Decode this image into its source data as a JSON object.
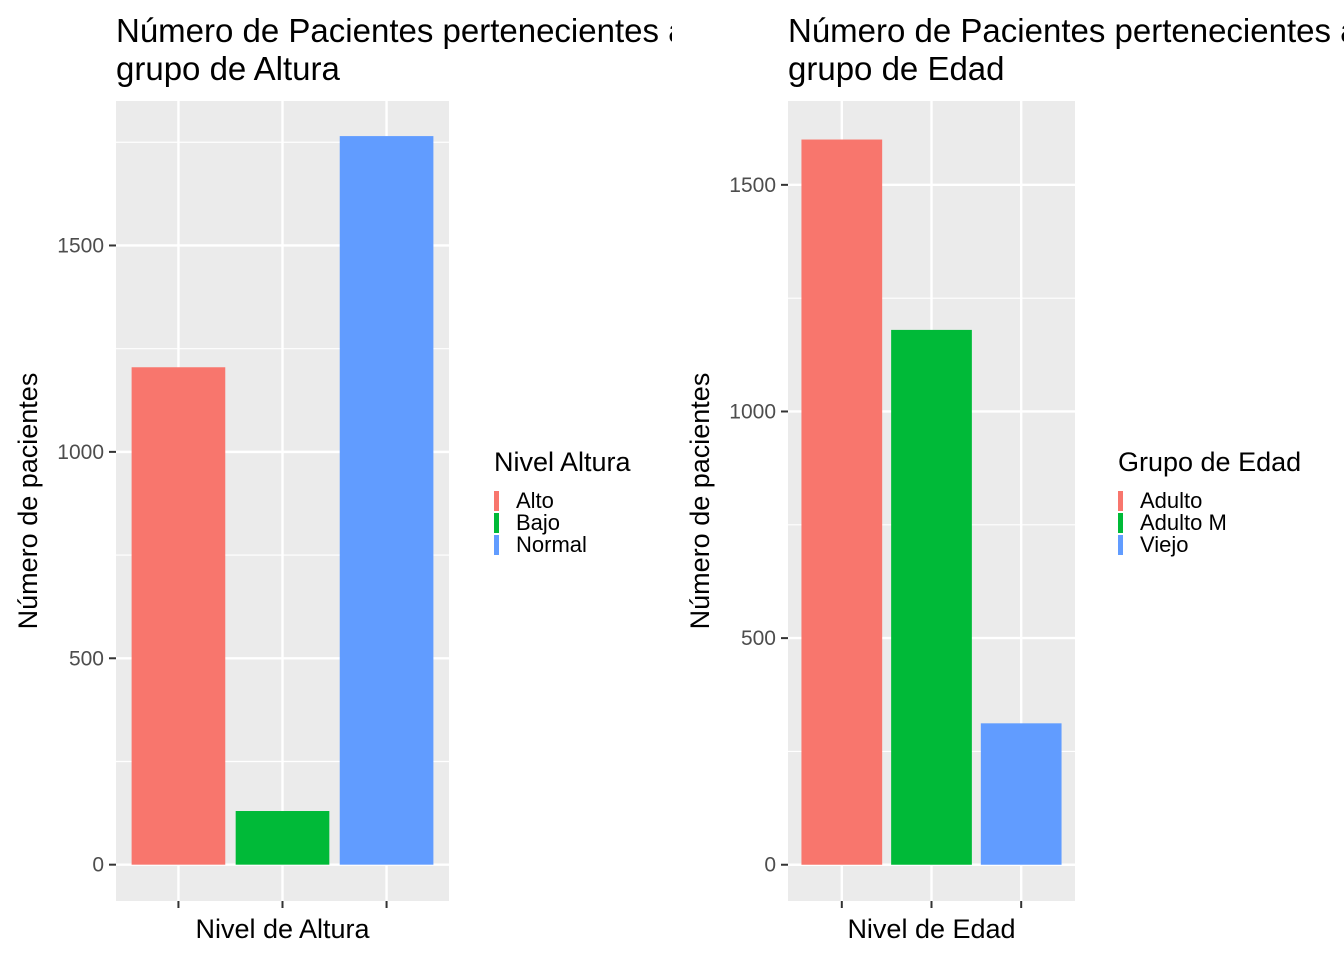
{
  "chart_data": [
    {
      "type": "bar",
      "title_line1": "Número de Pacientes pertenecientes a cada",
      "title_line2": "grupo de Altura",
      "xlabel": "Nivel de Altura",
      "ylabel": "Número de pacientes",
      "categories": [
        "Alto",
        "Bajo",
        "Normal"
      ],
      "values": [
        1205,
        130,
        1765
      ],
      "colors": [
        "#F8766D",
        "#00BA38",
        "#619CFF"
      ],
      "ylim": [
        -88,
        1850
      ],
      "yticks": [
        0,
        500,
        1000,
        1500
      ],
      "legend_title": "Nivel Altura",
      "legend_placement": "right",
      "grid": true
    },
    {
      "type": "bar",
      "title_line1": "Número de Pacientes pertenecientes a cada",
      "title_line2": "grupo de Edad",
      "xlabel": "Nivel de Edad",
      "ylabel": "Número de pacientes",
      "categories": [
        "Adulto",
        "Adulto M",
        "Viejo"
      ],
      "values": [
        1600,
        1180,
        312
      ],
      "colors": [
        "#F8766D",
        "#00BA38",
        "#619CFF"
      ],
      "ylim": [
        -80,
        1685
      ],
      "yticks": [
        0,
        500,
        1000,
        1500
      ],
      "legend_title": "Grupo de Edad",
      "legend_placement": "right",
      "grid": true
    }
  ]
}
